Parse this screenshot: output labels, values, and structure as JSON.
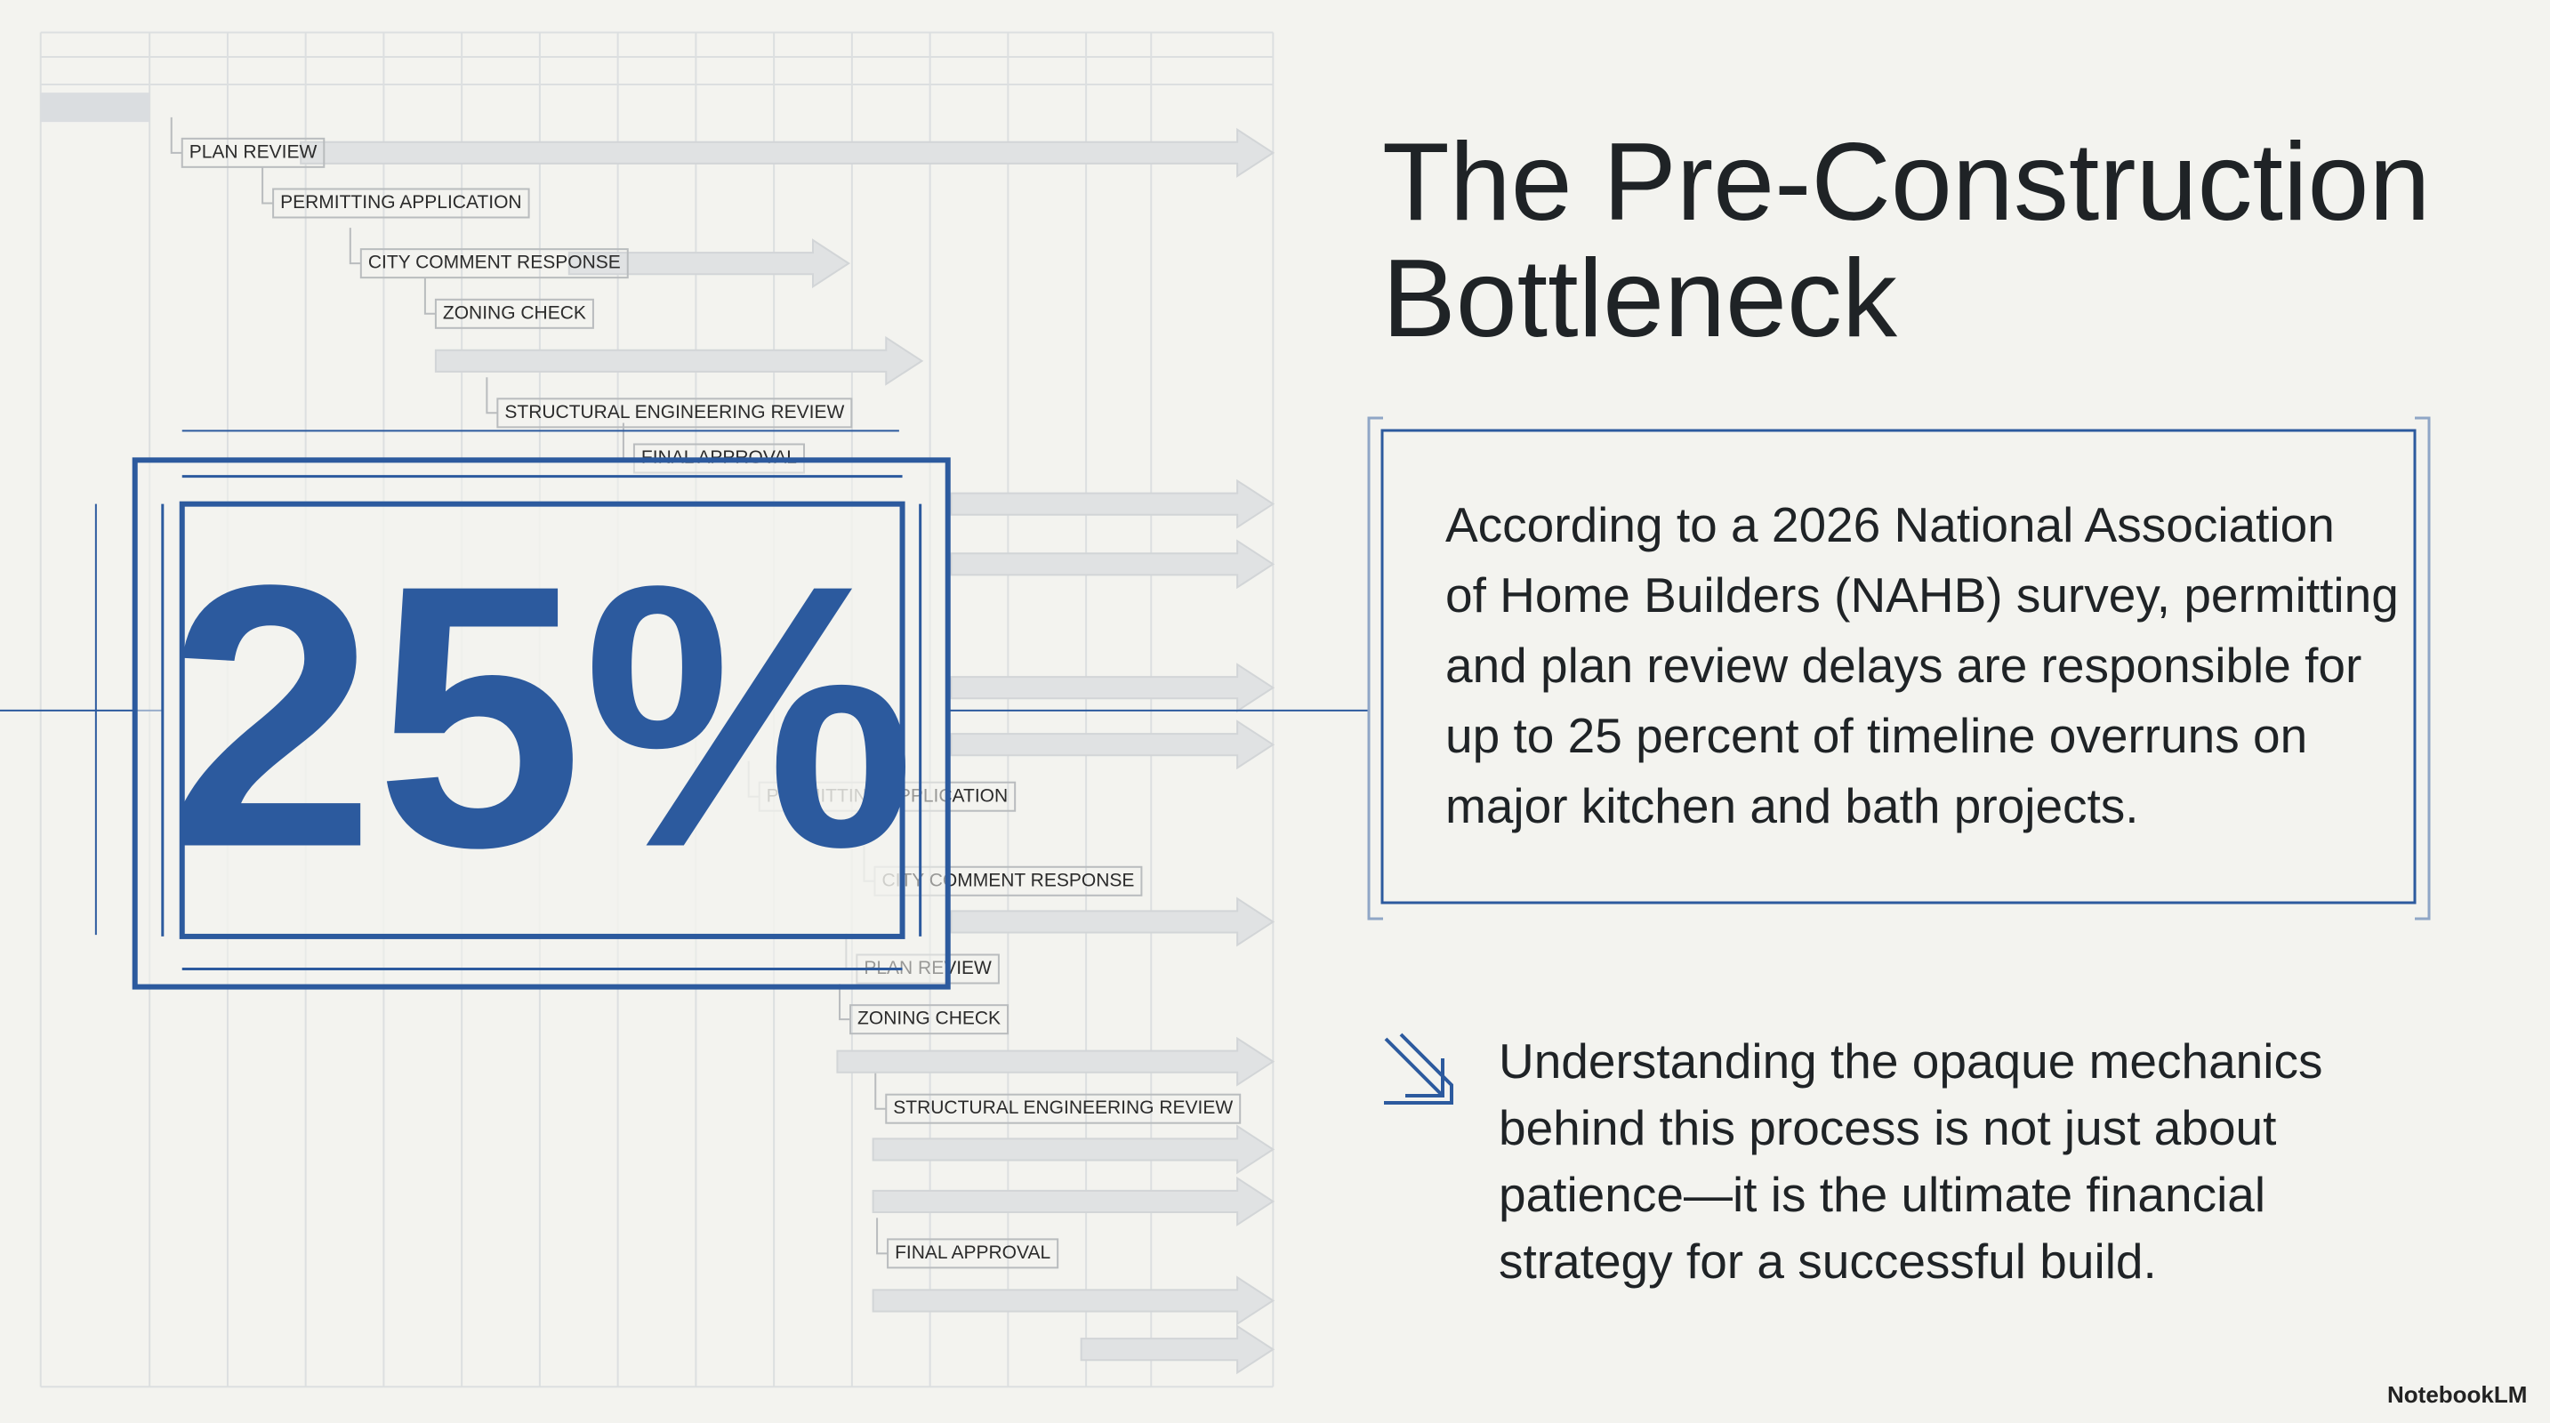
{
  "header": {
    "title_lines": [
      "The Pre-Construction",
      "Bottleneck"
    ]
  },
  "stat": {
    "value": "25%"
  },
  "body": {
    "lines": [
      "According to a 2026 National Association",
      "of Home Builders (NAHB) survey, permitting",
      "and plan review delays are responsible for",
      "up to 25 percent of timeline overruns on",
      "major kitchen and bath projects."
    ]
  },
  "note": {
    "lines": [
      "Understanding the opaque mechanics",
      "behind this process is not just about",
      "patience—it is the ultimate financial",
      "strategy for a successful build."
    ]
  },
  "diagram": {
    "top_labels": [
      "PLAN REVIEW",
      "PERMITTING APPLICATION",
      "CITY COMMENT RESPONSE",
      "ZONING CHECK",
      "STRUCTURAL ENGINEERING REVIEW",
      "FINAL APPROVAL"
    ],
    "bottom_labels": [
      "PERMITTING APPLICATION",
      "CITY COMMENT RESPONSE",
      "PLAN REVIEW",
      "ZONING CHECK",
      "STRUCTURAL ENGINEERING REVIEW",
      "FINAL APPROVAL"
    ]
  },
  "footer": {
    "brand": "NotebookLM"
  }
}
